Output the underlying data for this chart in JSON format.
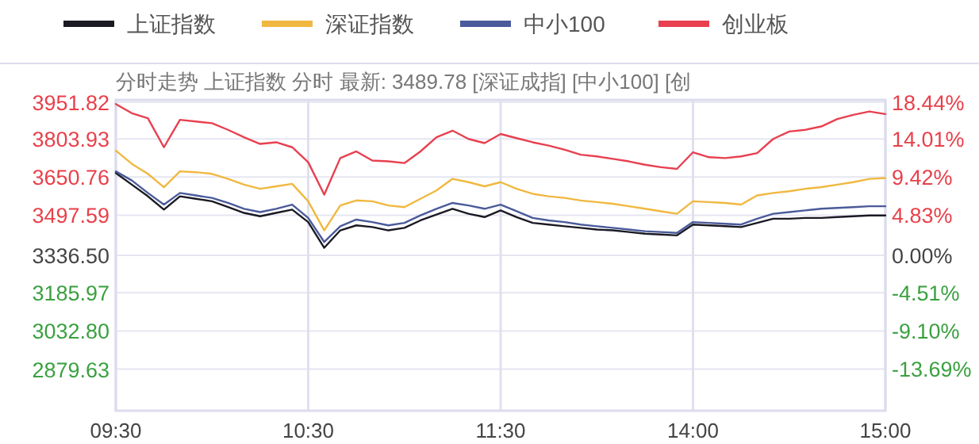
{
  "chart_data": {
    "type": "line",
    "title": "分时走势 上证指数 分时 最新: 3489.78 [深证成指] [中小100] [创",
    "legend": "top",
    "grid": true,
    "line_style": "solid",
    "marker": "none",
    "categories": [
      "09:30",
      null,
      null,
      null,
      null,
      null,
      null,
      null,
      null,
      null,
      null,
      null,
      "10:30",
      null,
      null,
      null,
      null,
      null,
      null,
      null,
      null,
      null,
      null,
      null,
      "11:30",
      null,
      null,
      null,
      null,
      null,
      null,
      null,
      null,
      null,
      null,
      null,
      "14:00",
      null,
      null,
      null,
      null,
      null,
      null,
      null,
      null,
      null,
      null,
      null,
      "15:00"
    ],
    "ylim": [
      2712.6,
      3960.4
    ],
    "yticks": [
      3951.82,
      3803.93,
      3650.76,
      3497.59,
      {
        "value": 3336.5,
        "label": "3336.50"
      },
      3185.97,
      {
        "value": 3032.8,
        "label": "3032.80"
      },
      2879.63
    ],
    "y2lim": [
      -18.7,
      18.7
    ],
    "y2ticks": [
      {
        "value": 18.44,
        "label": "18.44%"
      },
      {
        "value": 14.01,
        "label": "14.01%"
      },
      {
        "value": 9.42,
        "label": "9.42%"
      },
      {
        "value": 4.83,
        "label": "4.83%"
      },
      {
        "value": 0,
        "label": "0.00%"
      },
      {
        "value": -4.51,
        "label": "-4.51%"
      },
      {
        "value": -9.1,
        "label": "-9.10%"
      },
      {
        "value": -13.69,
        "label": "-13.69%"
      }
    ],
    "series": [
      {
        "name": "上证指数",
        "color": "#1a1a24",
        "axis": "y2",
        "values": [
          9.9,
          8.5,
          7.1,
          5.5,
          7.1,
          6.8,
          6.5,
          5.8,
          5.1,
          4.7,
          5.1,
          5.5,
          4.0,
          0.9,
          3.0,
          3.6,
          3.4,
          3.0,
          3.3,
          4.2,
          4.9,
          5.6,
          5.0,
          4.6,
          5.4,
          4.6,
          3.9,
          3.7,
          3.5,
          3.3,
          3.1,
          3.0,
          2.8,
          2.6,
          2.5,
          2.4,
          3.7,
          3.6,
          3.5,
          3.4,
          3.9,
          4.4,
          4.4,
          4.5,
          4.5,
          4.6,
          4.7,
          4.8,
          4.8
        ]
      },
      {
        "name": "深证指数",
        "color": "#f0b840",
        "axis": "y2",
        "values": [
          12.6,
          11.0,
          9.8,
          8.2,
          10.1,
          10.0,
          9.8,
          9.2,
          8.5,
          8.0,
          8.3,
          8.6,
          6.5,
          3.0,
          6.0,
          6.6,
          6.5,
          6.0,
          5.8,
          6.8,
          7.8,
          9.2,
          8.8,
          8.3,
          8.8,
          8.0,
          7.4,
          7.1,
          6.9,
          6.6,
          6.4,
          6.2,
          5.9,
          5.6,
          5.3,
          5.0,
          6.5,
          6.4,
          6.3,
          6.1,
          7.2,
          7.5,
          7.7,
          8.0,
          8.2,
          8.5,
          8.8,
          9.2,
          9.3
        ]
      },
      {
        "name": "中小100",
        "color": "#4a5a9a",
        "axis": "y2",
        "values": [
          10.1,
          9.0,
          7.5,
          6.1,
          7.5,
          7.2,
          6.9,
          6.3,
          5.6,
          5.2,
          5.6,
          6.1,
          4.5,
          1.6,
          3.5,
          4.3,
          4.0,
          3.6,
          3.9,
          4.8,
          5.6,
          6.3,
          6.0,
          5.6,
          6.1,
          5.3,
          4.5,
          4.2,
          4.0,
          3.7,
          3.5,
          3.3,
          3.1,
          2.9,
          2.8,
          2.7,
          4.0,
          3.9,
          3.8,
          3.7,
          4.4,
          5.0,
          5.2,
          5.4,
          5.6,
          5.7,
          5.8,
          5.9,
          5.9
        ]
      },
      {
        "name": "创业板",
        "color": "#e84050",
        "axis": "y2",
        "values": [
          18.2,
          17.1,
          16.5,
          13.0,
          16.3,
          16.1,
          15.9,
          15.1,
          14.2,
          13.4,
          13.6,
          13.0,
          11.2,
          7.3,
          11.7,
          12.5,
          11.4,
          11.3,
          11.1,
          12.5,
          14.2,
          15.0,
          14.0,
          13.5,
          14.6,
          14.1,
          13.6,
          13.2,
          12.7,
          12.1,
          11.9,
          11.6,
          11.3,
          10.9,
          10.6,
          10.4,
          12.4,
          11.8,
          11.7,
          11.9,
          12.3,
          14.0,
          14.9,
          15.1,
          15.5,
          16.4,
          16.9,
          17.3,
          17.0
        ]
      }
    ]
  }
}
